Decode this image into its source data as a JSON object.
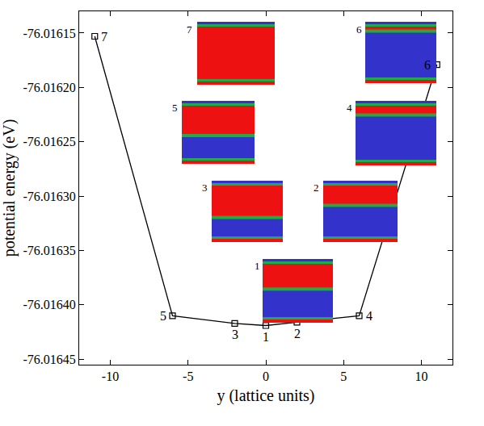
{
  "chart_data": {
    "type": "line",
    "x_label": "y (lattice units)",
    "y_label": "potential energy (eV)",
    "x": [
      -11,
      -6,
      -2,
      0,
      2,
      6,
      11
    ],
    "values": [
      -76.016153,
      -76.01641,
      -76.016417,
      -76.016419,
      -76.016416,
      -76.01641,
      -76.016179
    ],
    "point_labels": [
      "7",
      "5",
      "3",
      "1",
      "2",
      "4",
      "6"
    ],
    "annotations": [
      "7",
      "6",
      "5",
      "4",
      "3",
      "2",
      "1"
    ],
    "color": "#000000",
    "marker": "open square",
    "line_style": "solid",
    "xlim": [
      -12,
      12
    ],
    "xticks": [
      -10,
      -5,
      0,
      5,
      10
    ],
    "ylim": [
      -76.016455,
      -76.01613
    ],
    "yticks": [
      -76.01615,
      {
        "value": -76.0162,
        "label": "-76.01620"
      },
      -76.01625,
      {
        "value": -76.0163,
        "label": "-76.01630"
      },
      -76.01635,
      {
        "value": -76.0164,
        "label": "-76.01640"
      },
      -76.01645
    ],
    "grid": false
  }
}
